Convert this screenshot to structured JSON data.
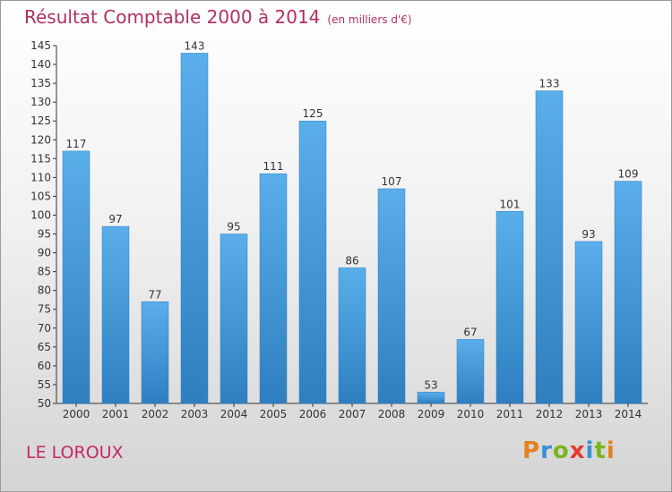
{
  "header": {
    "title": "Résultat Comptable 2000 à 2014",
    "unit": "(en milliers d'€)"
  },
  "footer": {
    "place": "LE LOROUX",
    "logo": "Proxiti"
  },
  "colors": {
    "bar_top": "#5aaeea",
    "bar_bottom": "#2f7fc0",
    "title": "#b03060"
  },
  "chart_data": {
    "type": "bar",
    "categories": [
      "2000",
      "2001",
      "2002",
      "2003",
      "2004",
      "2005",
      "2006",
      "2007",
      "2008",
      "2009",
      "2010",
      "2011",
      "2012",
      "2013",
      "2014"
    ],
    "values": [
      117,
      97,
      77,
      143,
      95,
      111,
      125,
      86,
      107,
      53,
      67,
      101,
      133,
      93,
      109
    ],
    "ylim": [
      50,
      145
    ],
    "yticks": [
      50,
      55,
      60,
      65,
      70,
      75,
      80,
      85,
      90,
      95,
      100,
      105,
      110,
      115,
      120,
      125,
      130,
      135,
      140,
      145
    ],
    "title": "Résultat Comptable 2000 à 2014",
    "grid": false
  }
}
